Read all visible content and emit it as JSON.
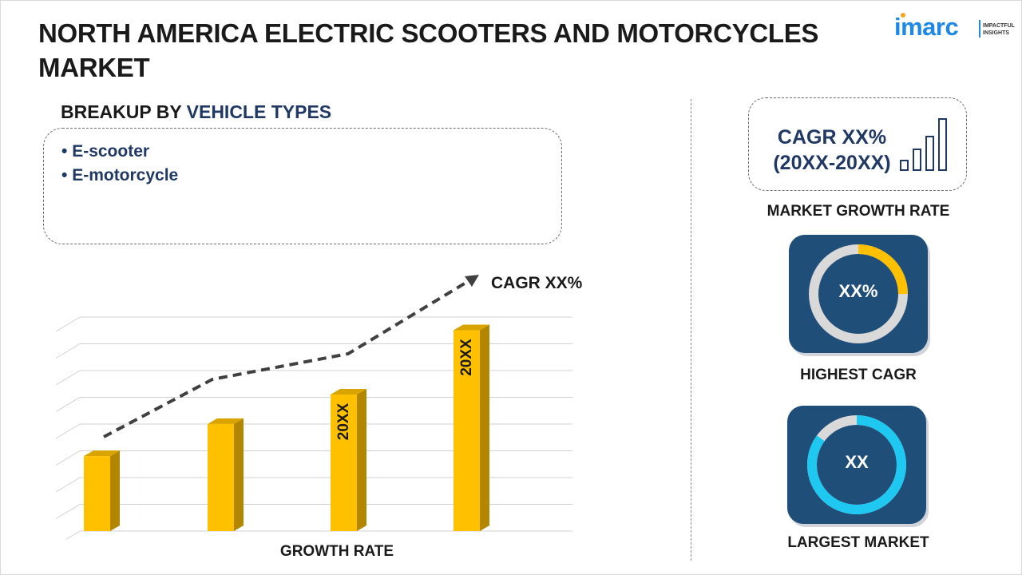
{
  "title": "NORTH AMERICA ELECTRIC SCOOTERS AND MOTORCYCLES MARKET",
  "logo": {
    "word": "imarc",
    "tagline_line1": "IMPACTFUL",
    "tagline_line2": "INSIGHTS"
  },
  "breakup": {
    "heading_prefix": "BREAKUP BY ",
    "heading_accent": "VEHICLE TYPES",
    "items": [
      "E-scooter",
      "E-motorcycle"
    ]
  },
  "chart_data": {
    "type": "bar",
    "categories": [
      "",
      "",
      "",
      ""
    ],
    "values": [
      28,
      40,
      51,
      75
    ],
    "bar_labels": [
      "",
      "",
      "20XX",
      "20XX"
    ],
    "trend_annotation": "CAGR XX%",
    "xlabel": "GROWTH RATE",
    "ylabel": "",
    "ylim": [
      0,
      85
    ],
    "grid": true,
    "colors": {
      "bar_front": "#FFC000",
      "bar_side": "#B38600",
      "bar_top": "#D9A400",
      "trend_line": "#404040"
    }
  },
  "market_growth": {
    "cagr_line1": "CAGR XX%",
    "cagr_line2": "(20XX-20XX)",
    "label": "MARKET GROWTH RATE"
  },
  "highest_cagr": {
    "value": "XX%",
    "fraction": 0.25,
    "label": "HIGHEST CAGR",
    "accent": "#FFC000"
  },
  "largest_market": {
    "value": "XX",
    "fraction": 0.85,
    "label": "LARGEST MARKET",
    "accent": "#1EC8F0"
  },
  "colors": {
    "navy": "#1F3864",
    "card": "#1F4E79",
    "ring_track": "#D9D9D9",
    "brand_blue": "#1E88E5"
  }
}
